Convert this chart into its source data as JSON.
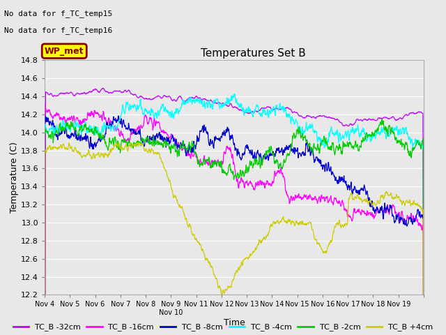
{
  "title": "Temperatures Set B",
  "xlabel": "Time",
  "ylabel": "Temperature (C)",
  "ylim": [
    12.2,
    14.8
  ],
  "xlim": [
    0,
    15
  ],
  "annotation1": "No data for f_TC_temp15",
  "annotation2": "No data for f_TC_temp16",
  "wp_met_label": "WP_met",
  "legend_entries": [
    "TC_B -32cm",
    "TC_B -16cm",
    "TC_B -8cm",
    "TC_B -4cm",
    "TC_B -2cm",
    "TC_B +4cm"
  ],
  "legend_colors": [
    "#bf00ff",
    "#ff00ff",
    "#0000cd",
    "#00ffff",
    "#00cc00",
    "#cccc00"
  ],
  "x_tick_labels": [
    "Nov 4",
    "Nov 5",
    "Nov 6",
    "Nov 7",
    "Nov 8",
    "Nov 9",
    "Nov 10",
    "Nov 11",
    "Nov 12",
    "Nov 13",
    "Nov 14",
    "Nov 15",
    "Nov 16",
    "Nov 17",
    "Nov 18",
    "Nov 19"
  ],
  "background_color": "#e8e8e8",
  "plot_bg_color": "#e8e8e8",
  "grid_color": "#ffffff"
}
